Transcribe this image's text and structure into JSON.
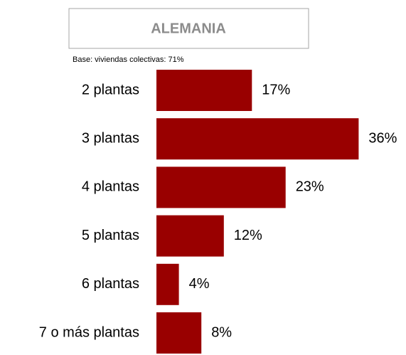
{
  "chart_data": {
    "type": "bar",
    "orientation": "horizontal",
    "title": "ALEMANIA",
    "subtitle": "Base: viviendas colectivas: 71%",
    "categories": [
      "2 plantas",
      "3 plantas",
      "4 plantas",
      "5 plantas",
      "6 plantas",
      "7 o más plantas"
    ],
    "values": [
      17,
      36,
      23,
      12,
      4,
      8
    ],
    "value_labels": [
      "17%",
      "36%",
      "23%",
      "12%",
      "4%",
      "8%"
    ],
    "color": "#990000"
  }
}
